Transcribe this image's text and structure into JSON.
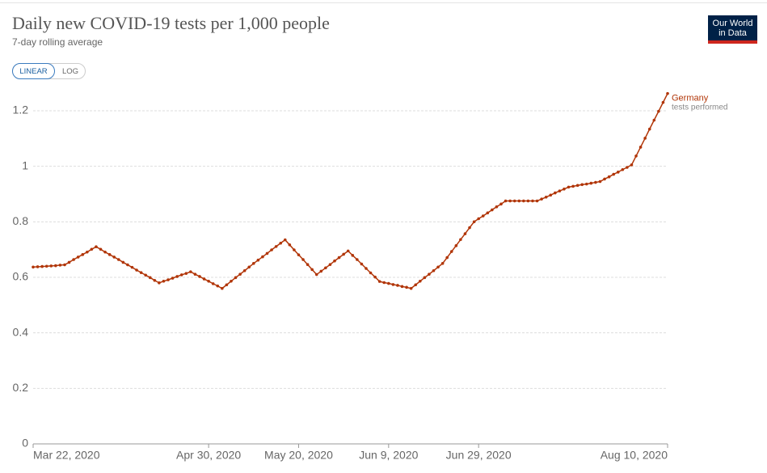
{
  "chart_data": {
    "type": "line",
    "title": "Daily new COVID-19 tests per 1,000 people",
    "subtitle": "7-day rolling average",
    "controls": [
      "LINEAR",
      "LOG"
    ],
    "logo": [
      "Our World",
      "in Data"
    ],
    "x": [
      "2020-03-22",
      "2020-03-23",
      "2020-03-24",
      "2020-03-25",
      "2020-03-26",
      "2020-03-27",
      "2020-03-28",
      "2020-03-29",
      "2020-03-30",
      "2020-03-31",
      "2020-04-01",
      "2020-04-02",
      "2020-04-03",
      "2020-04-04",
      "2020-04-05",
      "2020-04-06",
      "2020-04-07",
      "2020-04-08",
      "2020-04-09",
      "2020-04-10",
      "2020-04-11",
      "2020-04-12",
      "2020-04-13",
      "2020-04-14",
      "2020-04-15",
      "2020-04-16",
      "2020-04-17",
      "2020-04-18",
      "2020-04-19",
      "2020-04-20",
      "2020-04-21",
      "2020-04-22",
      "2020-04-23",
      "2020-04-24",
      "2020-04-25",
      "2020-04-26",
      "2020-04-27",
      "2020-04-28",
      "2020-04-29",
      "2020-04-30",
      "2020-05-01",
      "2020-05-02",
      "2020-05-03",
      "2020-05-04",
      "2020-05-05",
      "2020-05-06",
      "2020-05-07",
      "2020-05-08",
      "2020-05-09",
      "2020-05-10",
      "2020-05-11",
      "2020-05-12",
      "2020-05-13",
      "2020-05-14",
      "2020-05-15",
      "2020-05-16",
      "2020-05-17",
      "2020-05-18",
      "2020-05-19",
      "2020-05-20",
      "2020-05-21",
      "2020-05-22",
      "2020-05-23",
      "2020-05-24",
      "2020-05-25",
      "2020-05-26",
      "2020-05-27",
      "2020-05-28",
      "2020-05-29",
      "2020-05-30",
      "2020-05-31",
      "2020-06-01",
      "2020-06-02",
      "2020-06-03",
      "2020-06-04",
      "2020-06-05",
      "2020-06-06",
      "2020-06-07",
      "2020-06-08",
      "2020-06-09",
      "2020-06-10",
      "2020-06-11",
      "2020-06-12",
      "2020-06-13",
      "2020-06-14",
      "2020-06-15",
      "2020-06-16",
      "2020-06-17",
      "2020-06-18",
      "2020-06-19",
      "2020-06-20",
      "2020-06-21",
      "2020-06-22",
      "2020-06-23",
      "2020-06-24",
      "2020-06-25",
      "2020-06-26",
      "2020-06-27",
      "2020-06-28",
      "2020-06-29",
      "2020-06-30",
      "2020-07-01",
      "2020-07-02",
      "2020-07-03",
      "2020-07-04",
      "2020-07-05",
      "2020-07-06",
      "2020-07-07",
      "2020-07-08",
      "2020-07-09",
      "2020-07-10",
      "2020-07-11",
      "2020-07-12",
      "2020-07-13",
      "2020-07-14",
      "2020-07-15",
      "2020-07-16",
      "2020-07-17",
      "2020-07-18",
      "2020-07-19",
      "2020-07-20",
      "2020-07-21",
      "2020-07-22",
      "2020-07-23",
      "2020-07-24",
      "2020-07-25",
      "2020-07-26",
      "2020-07-27",
      "2020-07-28",
      "2020-07-29",
      "2020-07-30",
      "2020-07-31",
      "2020-08-01",
      "2020-08-02",
      "2020-08-03",
      "2020-08-04",
      "2020-08-05",
      "2020-08-06",
      "2020-08-07",
      "2020-08-08",
      "2020-08-09",
      "2020-08-10"
    ],
    "series": [
      {
        "name": "Germany",
        "annotation": "tests performed",
        "color": "#b13507",
        "values": [
          0.637,
          0.638,
          0.639,
          0.64,
          0.641,
          0.642,
          0.644,
          0.645,
          0.654,
          0.664,
          0.673,
          0.682,
          0.691,
          0.701,
          0.71,
          0.701,
          0.691,
          0.682,
          0.673,
          0.664,
          0.654,
          0.645,
          0.636,
          0.626,
          0.617,
          0.608,
          0.599,
          0.589,
          0.58,
          0.586,
          0.591,
          0.597,
          0.603,
          0.609,
          0.614,
          0.62,
          0.611,
          0.603,
          0.594,
          0.586,
          0.577,
          0.569,
          0.56,
          0.573,
          0.586,
          0.599,
          0.611,
          0.624,
          0.637,
          0.65,
          0.662,
          0.674,
          0.686,
          0.699,
          0.711,
          0.723,
          0.735,
          0.717,
          0.699,
          0.681,
          0.664,
          0.646,
          0.628,
          0.61,
          0.622,
          0.634,
          0.646,
          0.659,
          0.671,
          0.683,
          0.695,
          0.679,
          0.664,
          0.648,
          0.632,
          0.616,
          0.601,
          0.585,
          0.581,
          0.578,
          0.574,
          0.571,
          0.567,
          0.564,
          0.56,
          0.573,
          0.586,
          0.599,
          0.611,
          0.624,
          0.637,
          0.65,
          0.671,
          0.693,
          0.714,
          0.736,
          0.757,
          0.779,
          0.8,
          0.811,
          0.821,
          0.832,
          0.843,
          0.854,
          0.864,
          0.875,
          0.875,
          0.875,
          0.875,
          0.875,
          0.875,
          0.875,
          0.875,
          0.882,
          0.889,
          0.896,
          0.904,
          0.911,
          0.918,
          0.925,
          0.928,
          0.931,
          0.934,
          0.936,
          0.939,
          0.942,
          0.945,
          0.954,
          0.962,
          0.971,
          0.979,
          0.988,
          0.996,
          1.005,
          1.037,
          1.069,
          1.101,
          1.134,
          1.166,
          1.198,
          1.23,
          1.262
        ]
      }
    ],
    "xlim": [
      "2020-03-22",
      "2020-08-10"
    ],
    "xticks": [
      {
        "value": "2020-03-22",
        "label": "Mar 22, 2020"
      },
      {
        "value": "2020-04-30",
        "label": "Apr 30, 2020"
      },
      {
        "value": "2020-05-20",
        "label": "May 20, 2020"
      },
      {
        "value": "2020-06-09",
        "label": "Jun 9, 2020"
      },
      {
        "value": "2020-06-29",
        "label": "Jun 29, 2020"
      },
      {
        "value": "2020-08-10",
        "label": "Aug 10, 2020"
      }
    ],
    "ylim": [
      0,
      1.28
    ],
    "yticks": [
      0,
      0.2,
      0.4,
      0.6,
      0.8,
      1,
      1.2
    ],
    "grid": true
  }
}
